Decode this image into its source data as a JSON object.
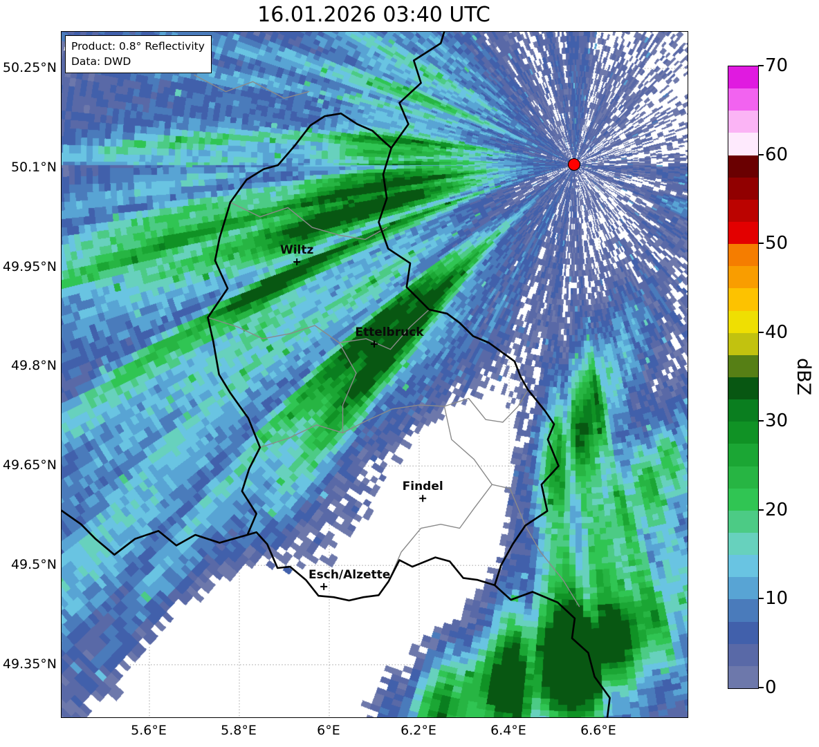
{
  "title": "16.01.2026 03:40 UTC",
  "info_box": {
    "line1": "Product: 0.8° Reflectivity",
    "line2": "Data: DWD"
  },
  "map": {
    "extent": {
      "lon_min": 5.4046,
      "lon_max": 6.797,
      "lat_min": 49.2707,
      "lat_max": 50.3053
    },
    "x_ticks": [
      {
        "lon": 5.6,
        "label": "5.6°E"
      },
      {
        "lon": 5.8,
        "label": "5.8°E"
      },
      {
        "lon": 6.0,
        "label": "6°E"
      },
      {
        "lon": 6.2,
        "label": "6.2°E"
      },
      {
        "lon": 6.4,
        "label": "6.4°E"
      },
      {
        "lon": 6.6,
        "label": "6.6°E"
      }
    ],
    "y_ticks": [
      {
        "lat": 50.25,
        "label": "50.25°N"
      },
      {
        "lat": 50.1,
        "label": "50.1°N"
      },
      {
        "lat": 49.95,
        "label": "49.95°N"
      },
      {
        "lat": 49.8,
        "label": "49.8°N"
      },
      {
        "lat": 49.65,
        "label": "49.65°N"
      },
      {
        "lat": 49.5,
        "label": "49.5°N"
      },
      {
        "lat": 49.35,
        "label": "49.35°N"
      }
    ],
    "borders": {
      "country": [
        [
          [
            6.138,
            50.13
          ],
          [
            6.12,
            50.09
          ],
          [
            6.128,
            50.054
          ],
          [
            6.11,
            50.018
          ],
          [
            6.131,
            49.978
          ],
          [
            6.18,
            49.956
          ],
          [
            6.172,
            49.92
          ],
          [
            6.222,
            49.886
          ],
          [
            6.262,
            49.88
          ],
          [
            6.29,
            49.866
          ],
          [
            6.32,
            49.846
          ],
          [
            6.355,
            49.836
          ],
          [
            6.412,
            49.808
          ],
          [
            6.426,
            49.784
          ],
          [
            6.442,
            49.765
          ],
          [
            6.48,
            49.733
          ],
          [
            6.5,
            49.713
          ],
          [
            6.486,
            49.69
          ],
          [
            6.51,
            49.65
          ],
          [
            6.472,
            49.622
          ],
          [
            6.485,
            49.582
          ],
          [
            6.436,
            49.56
          ],
          [
            6.408,
            49.532
          ],
          [
            6.382,
            49.5
          ],
          [
            6.368,
            49.47
          ],
          [
            6.33,
            49.478
          ],
          [
            6.298,
            49.481
          ],
          [
            6.268,
            49.506
          ],
          [
            6.236,
            49.512
          ],
          [
            6.185,
            49.498
          ],
          [
            6.156,
            49.508
          ],
          [
            6.132,
            49.476
          ],
          [
            6.11,
            49.455
          ],
          [
            6.076,
            49.452
          ],
          [
            6.044,
            49.447
          ],
          [
            6.01,
            49.452
          ],
          [
            5.976,
            49.454
          ],
          [
            5.948,
            49.478
          ],
          [
            5.913,
            49.498
          ],
          [
            5.885,
            49.496
          ],
          [
            5.862,
            49.532
          ],
          [
            5.838,
            49.55
          ],
          [
            5.818,
            49.546
          ],
          [
            5.838,
            49.578
          ],
          [
            5.806,
            49.612
          ],
          [
            5.822,
            49.646
          ],
          [
            5.846,
            49.678
          ],
          [
            5.82,
            49.722
          ],
          [
            5.78,
            49.76
          ],
          [
            5.755,
            49.788
          ],
          [
            5.742,
            49.838
          ],
          [
            5.73,
            49.874
          ],
          [
            5.774,
            49.918
          ],
          [
            5.746,
            49.96
          ],
          [
            5.756,
            49.994
          ],
          [
            5.78,
            50.048
          ],
          [
            5.816,
            50.082
          ],
          [
            5.854,
            50.098
          ],
          [
            5.886,
            50.104
          ],
          [
            5.924,
            50.134
          ],
          [
            5.958,
            50.164
          ],
          [
            5.99,
            50.178
          ],
          [
            6.026,
            50.182
          ],
          [
            6.062,
            50.166
          ],
          [
            6.096,
            50.156
          ],
          [
            6.118,
            50.142
          ],
          [
            6.138,
            50.13
          ]
        ],
        [
          [
            6.138,
            50.13
          ],
          [
            6.176,
            50.166
          ],
          [
            6.156,
            50.198
          ],
          [
            6.204,
            50.228
          ],
          [
            6.188,
            50.262
          ],
          [
            6.248,
            50.288
          ],
          [
            6.256,
            50.306
          ]
        ],
        [
          [
            6.368,
            49.47
          ],
          [
            6.404,
            49.448
          ],
          [
            6.452,
            49.46
          ],
          [
            6.508,
            49.444
          ],
          [
            6.546,
            49.42
          ],
          [
            6.54,
            49.39
          ],
          [
            6.576,
            49.368
          ],
          [
            6.59,
            49.332
          ],
          [
            6.624,
            49.3
          ],
          [
            6.618,
            49.268
          ]
        ],
        [
          [
            5.404,
            49.583
          ],
          [
            5.448,
            49.562
          ],
          [
            5.48,
            49.54
          ],
          [
            5.522,
            49.516
          ],
          [
            5.568,
            49.54
          ],
          [
            5.62,
            49.552
          ],
          [
            5.66,
            49.53
          ],
          [
            5.702,
            49.546
          ],
          [
            5.756,
            49.534
          ],
          [
            5.818,
            49.546
          ]
        ]
      ],
      "regions": [
        [
          [
            5.78,
            50.048
          ],
          [
            5.846,
            50.026
          ],
          [
            5.908,
            50.04
          ],
          [
            5.962,
            50.01
          ],
          [
            6.024,
            49.998
          ],
          [
            6.08,
            49.992
          ],
          [
            6.128,
            50.01
          ]
        ],
        [
          [
            5.73,
            49.874
          ],
          [
            5.796,
            49.86
          ],
          [
            5.852,
            49.842
          ],
          [
            5.914,
            49.85
          ],
          [
            5.968,
            49.862
          ],
          [
            6.022,
            49.836
          ],
          [
            6.082,
            49.842
          ],
          [
            6.136,
            49.826
          ],
          [
            6.18,
            49.86
          ],
          [
            6.222,
            49.886
          ]
        ],
        [
          [
            5.846,
            49.678
          ],
          [
            5.91,
            49.692
          ],
          [
            5.972,
            49.712
          ],
          [
            6.03,
            49.7
          ],
          [
            6.082,
            49.718
          ],
          [
            6.14,
            49.736
          ],
          [
            6.2,
            49.742
          ],
          [
            6.256,
            49.74
          ],
          [
            6.31,
            49.752
          ],
          [
            6.348,
            49.72
          ],
          [
            6.386,
            49.716
          ],
          [
            6.42,
            49.74
          ],
          [
            6.442,
            49.765
          ]
        ],
        [
          [
            6.256,
            49.74
          ],
          [
            6.272,
            49.69
          ],
          [
            6.322,
            49.66
          ],
          [
            6.362,
            49.622
          ],
          [
            6.402,
            49.616
          ],
          [
            6.436,
            49.56
          ]
        ],
        [
          [
            6.132,
            49.476
          ],
          [
            6.16,
            49.52
          ],
          [
            6.204,
            49.556
          ],
          [
            6.248,
            49.562
          ],
          [
            6.29,
            49.556
          ],
          [
            6.322,
            49.586
          ],
          [
            6.362,
            49.622
          ]
        ],
        [
          [
            6.022,
            49.836
          ],
          [
            6.06,
            49.79
          ],
          [
            6.03,
            49.742
          ],
          [
            6.03,
            49.7
          ]
        ],
        [
          [
            6.436,
            49.56
          ],
          [
            6.47,
            49.52
          ],
          [
            6.52,
            49.478
          ],
          [
            6.556,
            49.438
          ]
        ],
        [
          [
            5.7,
            50.24
          ],
          [
            5.77,
            50.215
          ],
          [
            5.83,
            50.23
          ],
          [
            5.9,
            50.205
          ],
          [
            5.955,
            50.215
          ]
        ]
      ]
    }
  },
  "chart_data": {
    "type": "heatmap",
    "subtype": "weather_radar_reflectivity_map",
    "units": "dBZ",
    "value_range": [
      0,
      70
    ],
    "max_observed_dbz": 33.5,
    "radar_site": {
      "lon": 6.5446,
      "lat": 50.105,
      "marker": "red-dot",
      "color": "#ff0000"
    },
    "cities": [
      {
        "name": "Wiltz",
        "lon": 5.928,
        "lat": 49.958,
        "label_dx": 0
      },
      {
        "name": "Ettelbruck",
        "lon": 6.1,
        "lat": 49.834,
        "label_dx": 22
      },
      {
        "name": "Findel",
        "lon": 6.208,
        "lat": 49.601,
        "label_dx": 0
      },
      {
        "name": "Esch/Alzette",
        "lon": 5.988,
        "lat": 49.468,
        "label_dx": 37
      }
    ],
    "echo_regions": [
      {
        "lon": 5.7,
        "lat": 50.16,
        "peak_dbz": 9,
        "sigma_u": 0.45,
        "sigma_v": 0.26,
        "angle": -35
      },
      {
        "lon": 6.154,
        "lat": 50.091,
        "peak_dbz": 10,
        "sigma_u": 0.3,
        "sigma_v": 0.15,
        "angle": -80
      },
      {
        "lon": 6.146,
        "lat": 49.914,
        "peak_dbz": 10,
        "sigma_u": 0.18,
        "sigma_v": 0.13,
        "angle": -70
      },
      {
        "lon": 5.7,
        "lat": 49.85,
        "peak_dbz": 13,
        "sigma_u": 0.45,
        "sigma_v": 0.26,
        "angle": -38
      },
      {
        "lon": 5.638,
        "lat": 49.758,
        "peak_dbz": 20,
        "sigma_u": 0.28,
        "sigma_v": 0.085,
        "angle": -40
      },
      {
        "lon": 5.87,
        "lat": 49.9,
        "peak_dbz": 20,
        "sigma_u": 0.13,
        "sigma_v": 0.05,
        "angle": -55
      },
      {
        "lon": 6.1,
        "lat": 49.768,
        "peak_dbz": 12,
        "sigma_u": 0.23,
        "sigma_v": 0.13,
        "angle": -72
      },
      {
        "lon": 6.008,
        "lat": 49.528,
        "peak_dbz": 10,
        "sigma_u": 0.18,
        "sigma_v": 0.11,
        "angle": -60
      },
      {
        "lon": 6.485,
        "lat": 50.133,
        "peak_dbz": 3.2,
        "sigma_u": 0.3,
        "sigma_v": 0.22,
        "angle": -40
      },
      {
        "lon": 6.785,
        "lat": 50.039,
        "peak_dbz": 7,
        "sigma_u": 0.07,
        "sigma_v": 0.05,
        "angle": -40
      },
      {
        "lon": 6.623,
        "lat": 49.674,
        "peak_dbz": 11,
        "sigma_u": 0.26,
        "sigma_v": 0.15,
        "angle": -60
      },
      {
        "lon": 6.585,
        "lat": 49.741,
        "peak_dbz": 24,
        "sigma_u": 0.16,
        "sigma_v": 0.05,
        "angle": -65
      },
      {
        "lon": 6.723,
        "lat": 49.637,
        "peak_dbz": 20,
        "sigma_u": 0.1,
        "sigma_v": 0.045,
        "angle": -60
      },
      {
        "lon": 6.746,
        "lat": 49.507,
        "peak_dbz": 11,
        "sigma_u": 0.24,
        "sigma_v": 0.14,
        "angle": -60
      },
      {
        "lon": 6.469,
        "lat": 49.335,
        "peak_dbz": 15,
        "sigma_u": 0.4,
        "sigma_v": 0.17,
        "angle": -22
      },
      {
        "lon": 6.377,
        "lat": 49.319,
        "peak_dbz": 22,
        "sigma_u": 0.16,
        "sigma_v": 0.07,
        "angle": -30
      },
      {
        "lon": 6.615,
        "lat": 49.376,
        "peak_dbz": 21,
        "sigma_u": 0.11,
        "sigma_v": 0.05,
        "angle": -35
      },
      {
        "lon": 5.469,
        "lat": 49.475,
        "peak_dbz": 12,
        "sigma_u": 0.28,
        "sigma_v": 0.17,
        "angle": -45
      },
      {
        "lon": 6.177,
        "lat": 49.632,
        "peak_dbz": -13,
        "sigma_u": 0.2,
        "sigma_v": 0.14,
        "angle": -60
      },
      {
        "lon": 5.877,
        "lat": 49.361,
        "peak_dbz": -15,
        "sigma_u": 0.26,
        "sigma_v": 0.17,
        "angle": -30
      },
      {
        "lon": 6.708,
        "lat": 49.762,
        "peak_dbz": -7,
        "sigma_u": 0.1,
        "sigma_v": 0.08,
        "angle": -60
      },
      {
        "lon": 6.269,
        "lat": 49.528,
        "peak_dbz": -7,
        "sigma_u": 0.13,
        "sigma_v": 0.1,
        "angle": -60
      },
      {
        "lon": 5.931,
        "lat": 50.112,
        "peak_dbz": -5,
        "sigma_u": 0.12,
        "sigma_v": 0.09,
        "angle": -50
      }
    ]
  },
  "colorbar": {
    "label": "dBZ",
    "min": 0,
    "max": 70,
    "segment_step": 2.5,
    "ticks": [
      "0",
      "10",
      "20",
      "30",
      "40",
      "50",
      "60",
      "70"
    ],
    "colors": [
      "#6d78ab",
      "#5969a7",
      "#4160ab",
      "#4a7bbb",
      "#58a4d4",
      "#69c4e2",
      "#67d1bd",
      "#4ccb85",
      "#30c553",
      "#27b543",
      "#1ba634",
      "#109225",
      "#0a7e1f",
      "#085712",
      "#567f15",
      "#c2c20f",
      "#efdf02",
      "#fdc200",
      "#f99d00",
      "#f57d00",
      "#e30000",
      "#bb0300",
      "#910000",
      "#6a0001",
      "#feeafd",
      "#fbb4f5",
      "#f263f0",
      "#e01ae0"
    ]
  }
}
